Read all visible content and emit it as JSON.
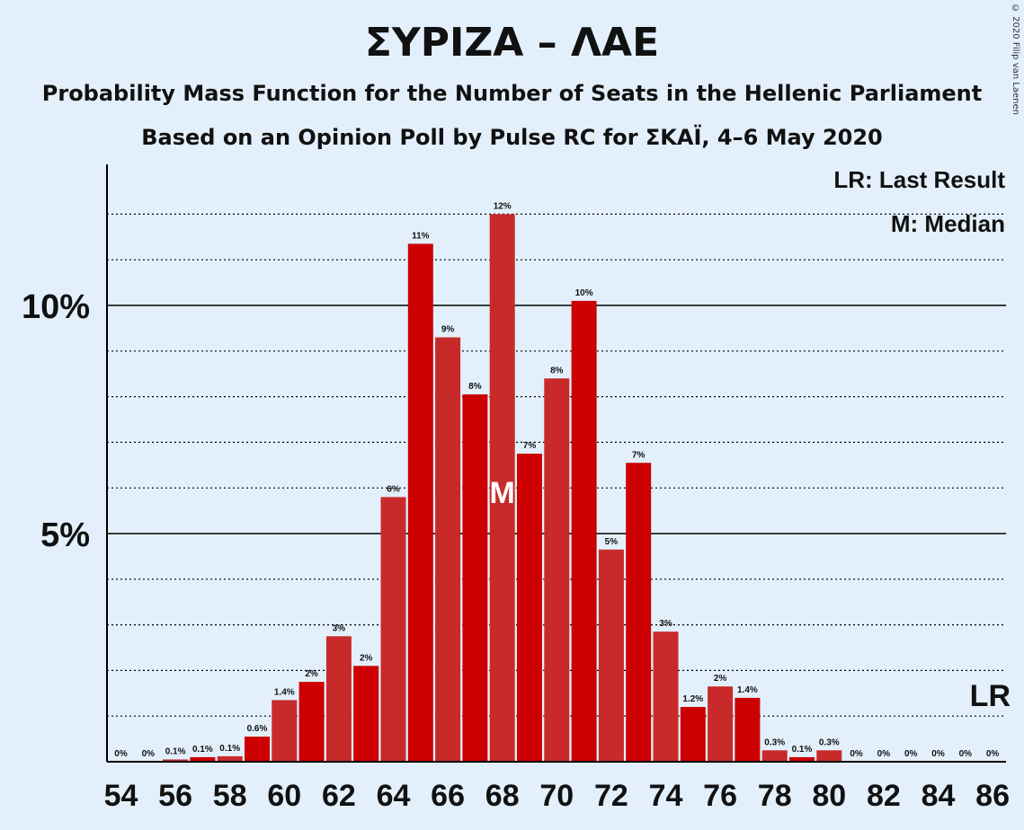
{
  "header": {
    "title": "ΣΥΡΙΖΑ – ΛΑΕ",
    "subtitle1": "Probability Mass Function for the Number of Seats in the Hellenic Parliament",
    "subtitle2": "Based on an Opinion Poll by Pulse RC for ΣΚΑΪ, 4–6 May 2020",
    "copyright": "© 2020 Filip van Laenen"
  },
  "chart_data": {
    "type": "bar",
    "title": "ΣΥΡΙΖΑ – ΛΑΕ",
    "categories": [
      54,
      55,
      56,
      57,
      58,
      59,
      60,
      61,
      62,
      63,
      64,
      65,
      66,
      67,
      68,
      69,
      70,
      71,
      72,
      73,
      74,
      75,
      76,
      77,
      78,
      79,
      80,
      81,
      82,
      83,
      84,
      85,
      86
    ],
    "values": [
      0,
      0,
      0.05,
      0.1,
      0.12,
      0.55,
      1.35,
      1.75,
      2.75,
      2.1,
      5.8,
      11.35,
      9.3,
      8.05,
      12.0,
      6.75,
      8.4,
      10.1,
      4.65,
      6.55,
      2.85,
      1.2,
      1.65,
      1.4,
      0.25,
      0.1,
      0.25,
      0,
      0,
      0,
      0,
      0,
      0
    ],
    "data_labels": [
      "0%",
      "0%",
      "0.1%",
      "0.1%",
      "0.1%",
      "0.6%",
      "1.4%",
      "2%",
      "3%",
      "2%",
      "6%",
      "11%",
      "9%",
      "8%",
      "12%",
      "7%",
      "8%",
      "10%",
      "5%",
      "7%",
      "3%",
      "1.2%",
      "2%",
      "1.4%",
      "0.3%",
      "0.1%",
      "0.3%",
      "0%",
      "0%",
      "0%",
      "0%",
      "0%",
      "0%"
    ],
    "xtick_labels": [
      "54",
      "56",
      "58",
      "60",
      "62",
      "64",
      "66",
      "68",
      "70",
      "72",
      "74",
      "76",
      "78",
      "80",
      "82",
      "84",
      "86"
    ],
    "ytick_labels": [
      "5%",
      "10%"
    ],
    "ylim": [
      0,
      13
    ],
    "grid": true,
    "median": 68,
    "median_marker": "M",
    "last_result": 86,
    "last_result_marker": "LR",
    "legend": [
      "LR: Last Result",
      "M: Median"
    ],
    "legend_position": "top-right",
    "colors": {
      "bar_dark": "#cc0000",
      "bar_light": "#c82a2a",
      "background": "#e3f0fc"
    }
  }
}
